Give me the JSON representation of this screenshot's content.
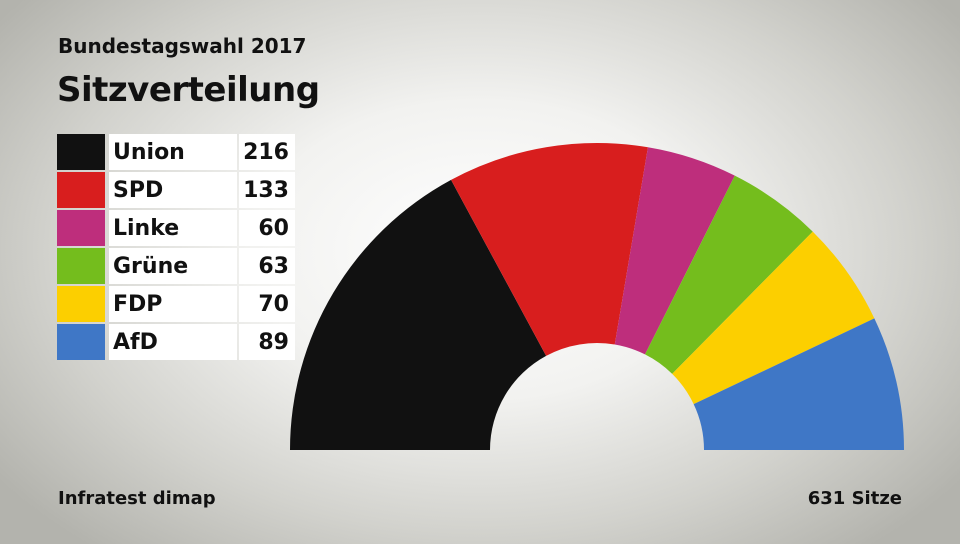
{
  "header": {
    "subtitle": "Bundestagswahl 2017",
    "title": "Sitzverteilung"
  },
  "footer": {
    "source": "Infratest dimap",
    "total_label": "631 Sitze"
  },
  "chart_data": {
    "type": "pie",
    "variant": "half-donut (parliament seats)",
    "total": 631,
    "categories": [
      "Union",
      "SPD",
      "Linke",
      "Grüne",
      "FDP",
      "AfD"
    ],
    "values": [
      216,
      133,
      60,
      63,
      70,
      89
    ],
    "colors": [
      "#111111",
      "#d81e1e",
      "#be2e7c",
      "#74bd1d",
      "#fccf00",
      "#3f77c6"
    ],
    "legend_position": "top-left"
  }
}
